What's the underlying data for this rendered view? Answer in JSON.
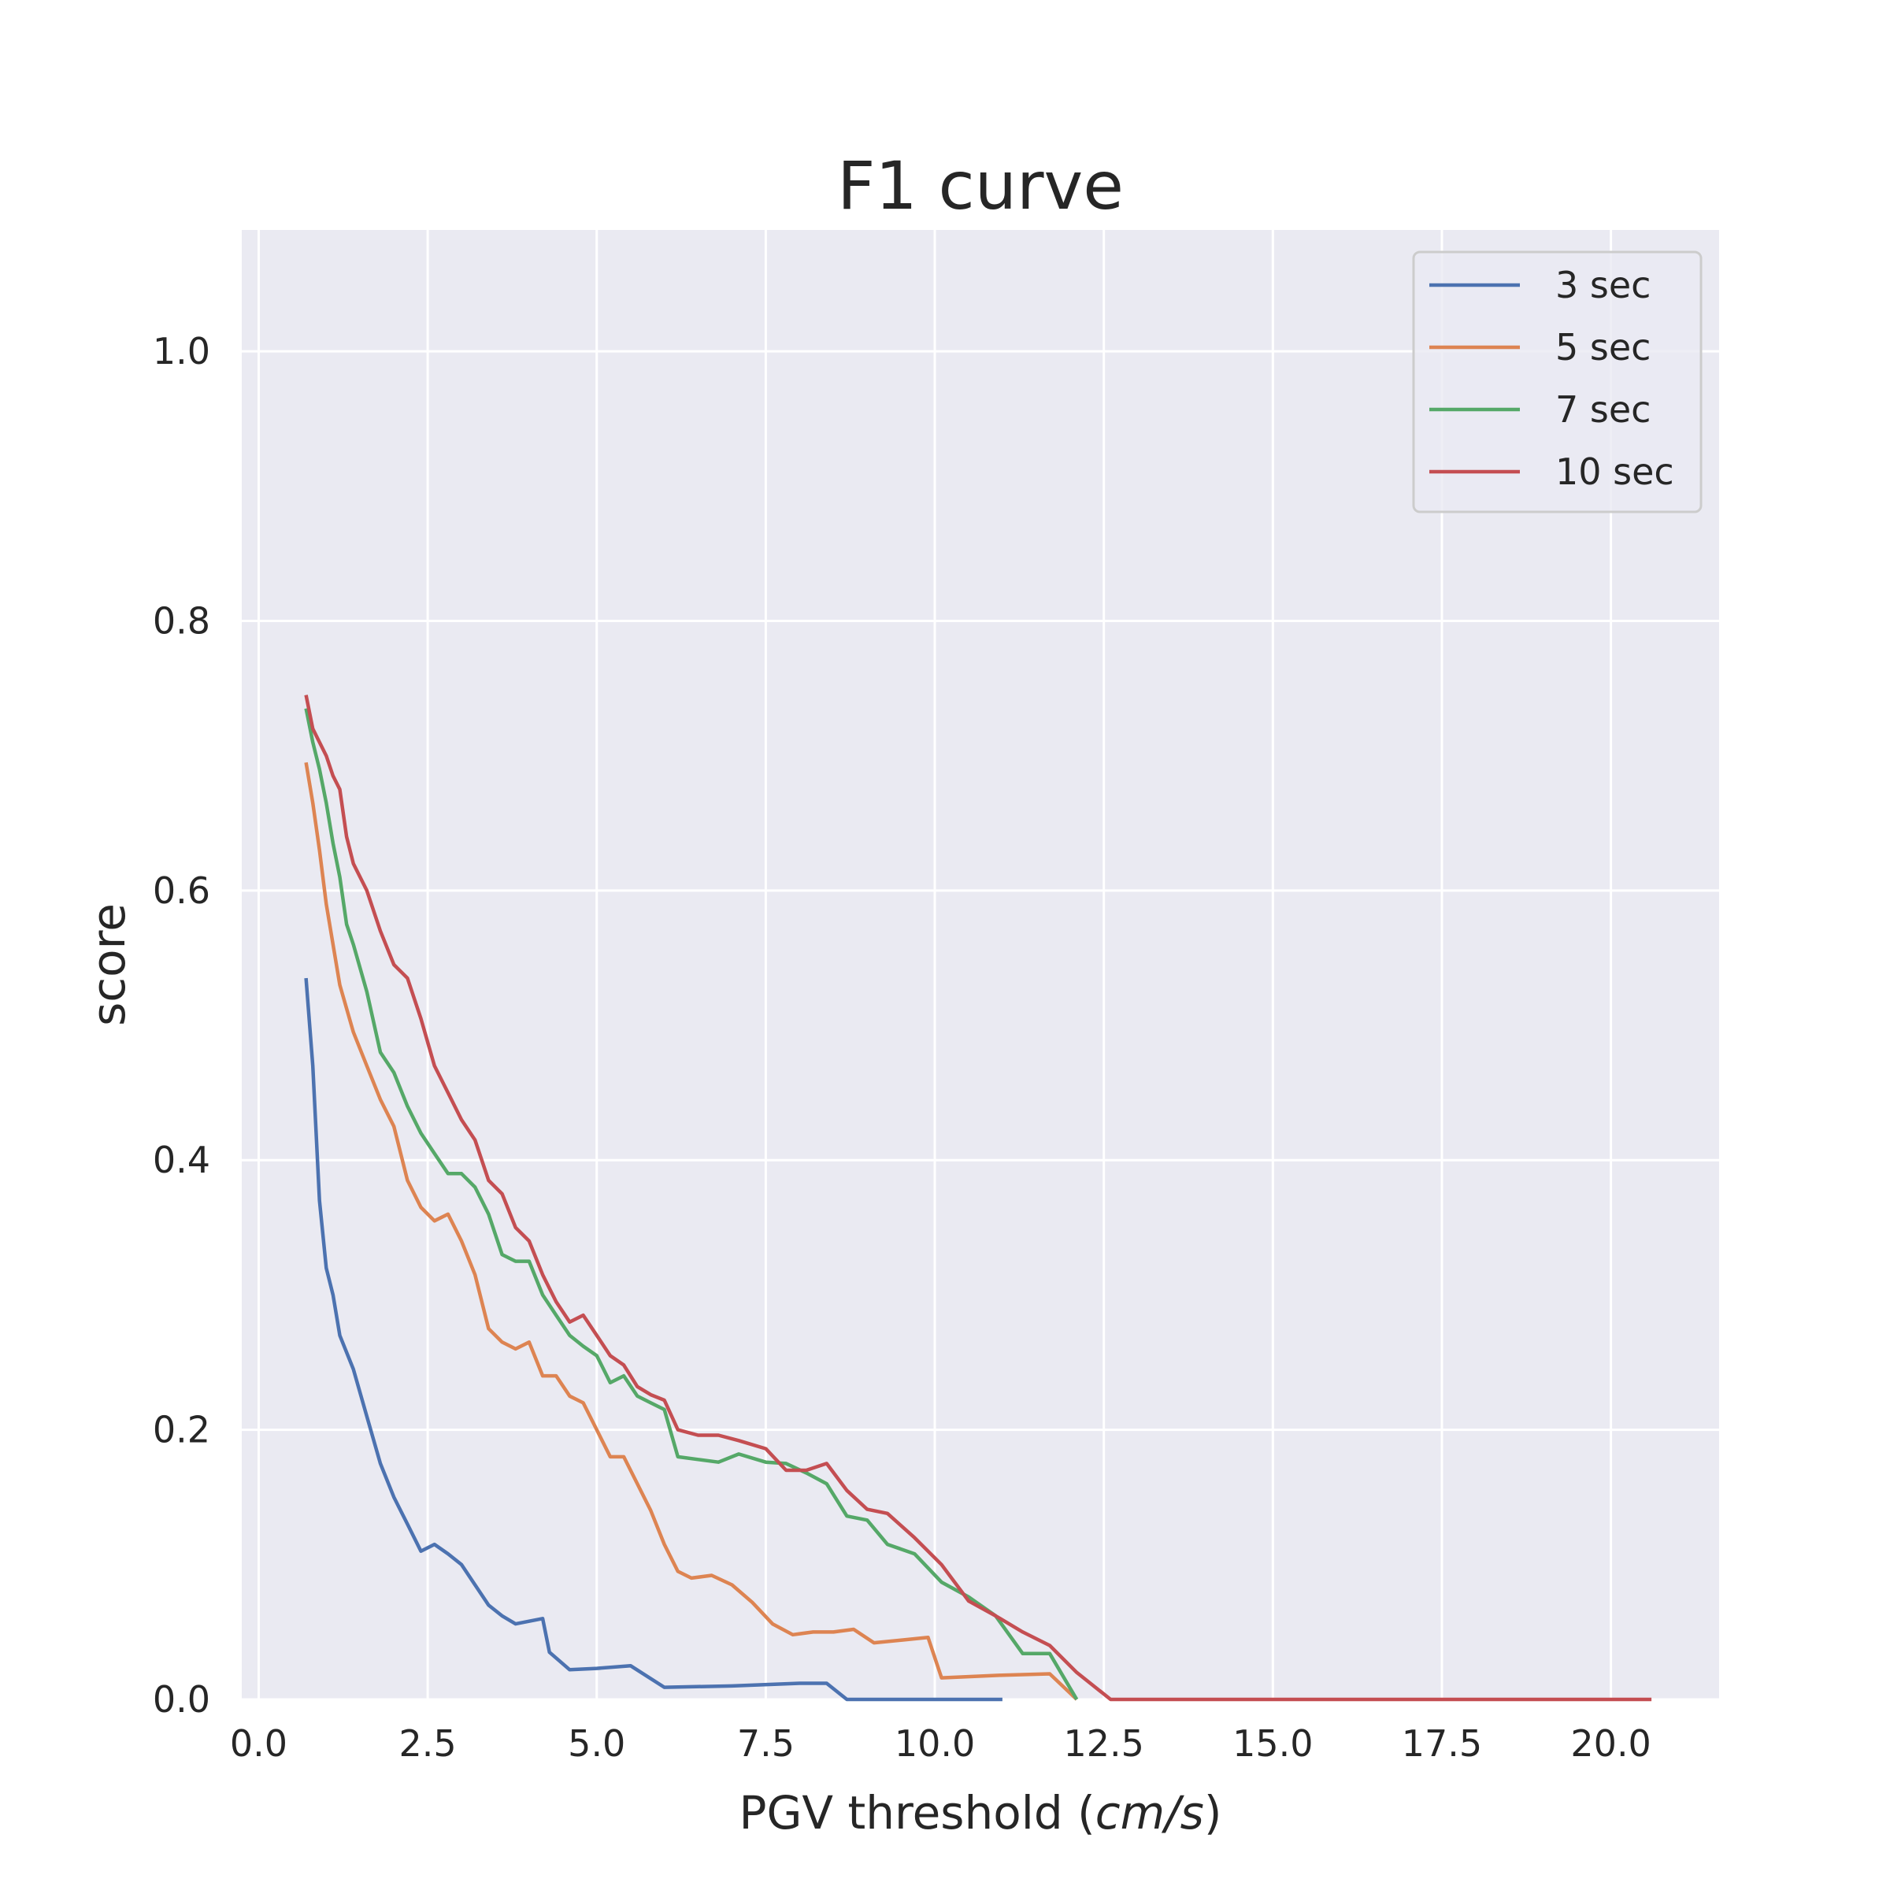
{
  "chart_data": {
    "type": "line",
    "title": "F1 curve",
    "xlabel_main": "PGV threshold (",
    "xlabel_unit": "cm/s",
    "xlabel_close": ")",
    "ylabel": "score",
    "xlim": [
      -0.25,
      21.6
    ],
    "ylim": [
      0,
      1.09
    ],
    "xticks": [
      0.0,
      2.5,
      5.0,
      7.5,
      10.0,
      12.5,
      15.0,
      17.5,
      20.0
    ],
    "xtick_labels": [
      "0.0",
      "2.5",
      "5.0",
      "7.5",
      "10.0",
      "12.5",
      "15.0",
      "17.5",
      "20.0"
    ],
    "yticks": [
      0.0,
      0.2,
      0.4,
      0.6,
      0.8,
      1.0
    ],
    "ytick_labels": [
      "0.0",
      "0.2",
      "0.4",
      "0.6",
      "0.8",
      "1.0"
    ],
    "grid": true,
    "legend_position": "top-right",
    "colors": {
      "background": "#eaeaf2",
      "grid": "#ffffff",
      "text": "#262626"
    },
    "series": [
      {
        "name": "3 sec",
        "color": "#4c72b0",
        "points": [
          [
            0.7,
            0.535
          ],
          [
            0.8,
            0.47
          ],
          [
            0.9,
            0.37
          ],
          [
            1.0,
            0.32
          ],
          [
            1.1,
            0.3
          ],
          [
            1.2,
            0.27
          ],
          [
            1.4,
            0.245
          ],
          [
            1.6,
            0.21
          ],
          [
            1.8,
            0.175
          ],
          [
            2.0,
            0.15
          ],
          [
            2.2,
            0.13
          ],
          [
            2.4,
            0.11
          ],
          [
            2.6,
            0.115
          ],
          [
            2.8,
            0.108
          ],
          [
            3.0,
            0.1
          ],
          [
            3.2,
            0.085
          ],
          [
            3.4,
            0.07
          ],
          [
            3.6,
            0.062
          ],
          [
            3.8,
            0.056
          ],
          [
            4.0,
            0.058
          ],
          [
            4.2,
            0.06
          ],
          [
            4.3,
            0.035
          ],
          [
            4.6,
            0.022
          ],
          [
            5.0,
            0.023
          ],
          [
            5.5,
            0.025
          ],
          [
            6.0,
            0.009
          ],
          [
            7.0,
            0.01
          ],
          [
            8.0,
            0.012
          ],
          [
            8.4,
            0.012
          ],
          [
            8.7,
            0.0
          ],
          [
            11.0,
            0.0
          ]
        ]
      },
      {
        "name": "5 sec",
        "color": "#dd8452",
        "points": [
          [
            0.7,
            0.695
          ],
          [
            0.8,
            0.665
          ],
          [
            0.9,
            0.63
          ],
          [
            1.0,
            0.59
          ],
          [
            1.2,
            0.53
          ],
          [
            1.4,
            0.495
          ],
          [
            1.6,
            0.47
          ],
          [
            1.8,
            0.445
          ],
          [
            2.0,
            0.425
          ],
          [
            2.2,
            0.385
          ],
          [
            2.4,
            0.365
          ],
          [
            2.6,
            0.355
          ],
          [
            2.8,
            0.36
          ],
          [
            3.0,
            0.34
          ],
          [
            3.2,
            0.315
          ],
          [
            3.4,
            0.275
          ],
          [
            3.6,
            0.265
          ],
          [
            3.8,
            0.26
          ],
          [
            4.0,
            0.265
          ],
          [
            4.2,
            0.24
          ],
          [
            4.4,
            0.24
          ],
          [
            4.6,
            0.225
          ],
          [
            4.8,
            0.22
          ],
          [
            5.0,
            0.2
          ],
          [
            5.2,
            0.18
          ],
          [
            5.4,
            0.18
          ],
          [
            5.6,
            0.16
          ],
          [
            5.8,
            0.14
          ],
          [
            6.0,
            0.115
          ],
          [
            6.2,
            0.095
          ],
          [
            6.4,
            0.09
          ],
          [
            6.7,
            0.092
          ],
          [
            7.0,
            0.085
          ],
          [
            7.3,
            0.072
          ],
          [
            7.6,
            0.056
          ],
          [
            7.9,
            0.048
          ],
          [
            8.2,
            0.05
          ],
          [
            8.5,
            0.05
          ],
          [
            8.8,
            0.052
          ],
          [
            9.1,
            0.042
          ],
          [
            9.5,
            0.044
          ],
          [
            9.9,
            0.046
          ],
          [
            10.1,
            0.016
          ],
          [
            11.0,
            0.018
          ],
          [
            11.7,
            0.019
          ],
          [
            12.1,
            0.0
          ]
        ]
      },
      {
        "name": "7 sec",
        "color": "#55a868",
        "points": [
          [
            0.7,
            0.735
          ],
          [
            0.8,
            0.71
          ],
          [
            0.9,
            0.69
          ],
          [
            1.0,
            0.665
          ],
          [
            1.1,
            0.635
          ],
          [
            1.2,
            0.61
          ],
          [
            1.3,
            0.575
          ],
          [
            1.4,
            0.56
          ],
          [
            1.6,
            0.525
          ],
          [
            1.8,
            0.48
          ],
          [
            2.0,
            0.465
          ],
          [
            2.2,
            0.44
          ],
          [
            2.4,
            0.42
          ],
          [
            2.6,
            0.405
          ],
          [
            2.8,
            0.39
          ],
          [
            3.0,
            0.39
          ],
          [
            3.2,
            0.38
          ],
          [
            3.4,
            0.36
          ],
          [
            3.6,
            0.33
          ],
          [
            3.8,
            0.325
          ],
          [
            4.0,
            0.325
          ],
          [
            4.2,
            0.3
          ],
          [
            4.4,
            0.285
          ],
          [
            4.6,
            0.27
          ],
          [
            4.8,
            0.262
          ],
          [
            5.0,
            0.255
          ],
          [
            5.2,
            0.235
          ],
          [
            5.4,
            0.24
          ],
          [
            5.6,
            0.225
          ],
          [
            5.8,
            0.22
          ],
          [
            6.0,
            0.215
          ],
          [
            6.2,
            0.18
          ],
          [
            6.5,
            0.178
          ],
          [
            6.8,
            0.176
          ],
          [
            7.1,
            0.182
          ],
          [
            7.5,
            0.176
          ],
          [
            7.8,
            0.175
          ],
          [
            8.1,
            0.168
          ],
          [
            8.4,
            0.16
          ],
          [
            8.7,
            0.136
          ],
          [
            9.0,
            0.133
          ],
          [
            9.3,
            0.115
          ],
          [
            9.7,
            0.108
          ],
          [
            10.1,
            0.087
          ],
          [
            10.5,
            0.076
          ],
          [
            10.9,
            0.062
          ],
          [
            11.3,
            0.034
          ],
          [
            11.7,
            0.034
          ],
          [
            12.1,
            0.0
          ]
        ]
      },
      {
        "name": "10 sec",
        "color": "#c44e52",
        "points": [
          [
            0.7,
            0.745
          ],
          [
            0.8,
            0.72
          ],
          [
            0.9,
            0.71
          ],
          [
            1.0,
            0.7
          ],
          [
            1.1,
            0.685
          ],
          [
            1.2,
            0.675
          ],
          [
            1.3,
            0.64
          ],
          [
            1.4,
            0.62
          ],
          [
            1.6,
            0.6
          ],
          [
            1.8,
            0.57
          ],
          [
            2.0,
            0.545
          ],
          [
            2.2,
            0.535
          ],
          [
            2.4,
            0.505
          ],
          [
            2.6,
            0.47
          ],
          [
            2.8,
            0.45
          ],
          [
            3.0,
            0.43
          ],
          [
            3.2,
            0.415
          ],
          [
            3.4,
            0.385
          ],
          [
            3.6,
            0.375
          ],
          [
            3.8,
            0.35
          ],
          [
            4.0,
            0.34
          ],
          [
            4.2,
            0.315
          ],
          [
            4.4,
            0.295
          ],
          [
            4.6,
            0.28
          ],
          [
            4.8,
            0.285
          ],
          [
            5.0,
            0.27
          ],
          [
            5.2,
            0.255
          ],
          [
            5.4,
            0.248
          ],
          [
            5.6,
            0.232
          ],
          [
            5.8,
            0.226
          ],
          [
            6.0,
            0.222
          ],
          [
            6.2,
            0.2
          ],
          [
            6.5,
            0.196
          ],
          [
            6.8,
            0.196
          ],
          [
            7.1,
            0.192
          ],
          [
            7.5,
            0.186
          ],
          [
            7.8,
            0.17
          ],
          [
            8.1,
            0.17
          ],
          [
            8.4,
            0.175
          ],
          [
            8.7,
            0.155
          ],
          [
            9.0,
            0.141
          ],
          [
            9.3,
            0.138
          ],
          [
            9.7,
            0.12
          ],
          [
            10.1,
            0.1
          ],
          [
            10.5,
            0.073
          ],
          [
            10.9,
            0.062
          ],
          [
            11.3,
            0.05
          ],
          [
            11.7,
            0.04
          ],
          [
            12.1,
            0.02
          ],
          [
            12.6,
            0.0
          ],
          [
            20.6,
            0.0
          ]
        ]
      }
    ]
  }
}
